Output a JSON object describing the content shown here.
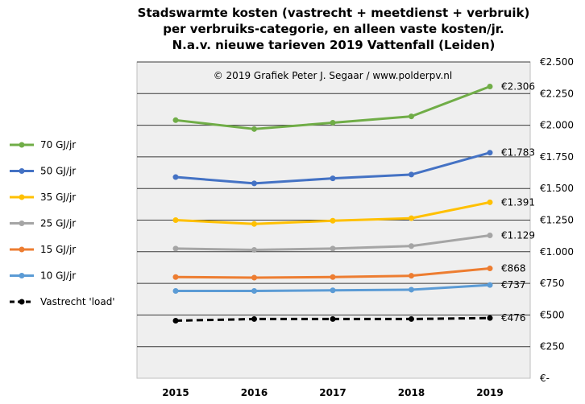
{
  "chart_data": {
    "type": "line",
    "title_lines": [
      "Stadswarmte kosten (vastrecht + meetdienst + verbruik)",
      "per verbruiks-categorie,  en alleen vaste kosten/jr.",
      "N.a.v. nieuwe tarieven 2019 Vattenfall (Leiden)"
    ],
    "annotation": "© 2019  Grafiek  Peter J. Segaar / www.polderpv.nl",
    "x": [
      "2015",
      "2016",
      "2017",
      "2018",
      "2019"
    ],
    "ylim": [
      0,
      2500
    ],
    "y_ticks": [
      0,
      250,
      500,
      750,
      1000,
      1250,
      1500,
      1750,
      2000,
      2250,
      2500
    ],
    "y_tick_labels": [
      "€-",
      "€250",
      "€500",
      "€750",
      "€1.000",
      "€1.250",
      "€1.500",
      "€1.750",
      "€2.000",
      "€2.250",
      "€2.500"
    ],
    "grid": "horizontal",
    "legend_position": "left",
    "series": [
      {
        "name": "70  GJ/jr",
        "color": "#70ad47",
        "dash": false,
        "values": [
          2040,
          1970,
          2020,
          2070,
          2306
        ],
        "end_label": "€2.306"
      },
      {
        "name": "50  GJ/jr",
        "color": "#4472c4",
        "dash": false,
        "values": [
          1590,
          1540,
          1580,
          1610,
          1783
        ],
        "end_label": "€1.783"
      },
      {
        "name": "35  GJ/jr",
        "color": "#ffc000",
        "dash": false,
        "values": [
          1250,
          1220,
          1245,
          1265,
          1391
        ],
        "end_label": "€1.391"
      },
      {
        "name": "25  GJ/jr",
        "color": "#a5a5a5",
        "dash": false,
        "values": [
          1025,
          1015,
          1025,
          1045,
          1129
        ],
        "end_label": "€1.129"
      },
      {
        "name": "15  GJ/jr",
        "color": "#ed7d31",
        "dash": false,
        "values": [
          800,
          795,
          800,
          810,
          868
        ],
        "end_label": "€868"
      },
      {
        "name": "10  GJ/jr",
        "color": "#5b9bd5",
        "dash": false,
        "values": [
          690,
          690,
          695,
          700,
          737
        ],
        "end_label": "€737"
      },
      {
        "name": "Vastrecht 'load'",
        "color": "#000000",
        "dash": true,
        "values": [
          455,
          468,
          468,
          468,
          476
        ],
        "end_label": "€476"
      }
    ]
  }
}
